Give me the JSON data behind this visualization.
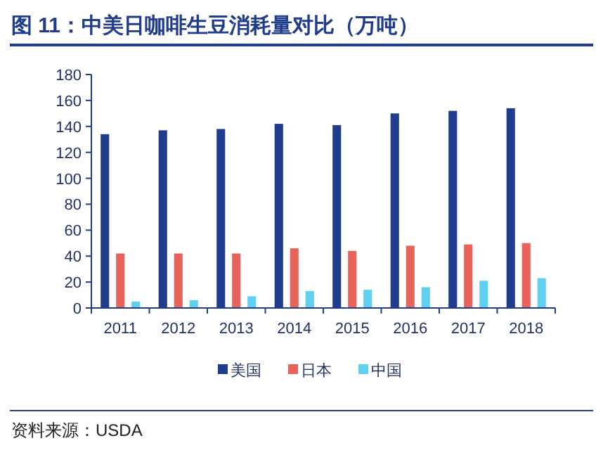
{
  "chart_data": {
    "type": "bar",
    "title": "图 11：中美日咖啡生豆消耗量对比（万吨）",
    "categories": [
      "2011",
      "2012",
      "2013",
      "2014",
      "2015",
      "2016",
      "2017",
      "2018"
    ],
    "series": [
      {
        "name": "美国",
        "color": "#1f3d8c",
        "values": [
          134,
          137,
          138,
          142,
          141,
          150,
          152,
          154
        ]
      },
      {
        "name": "日本",
        "color": "#e8645a",
        "values": [
          42,
          42,
          42,
          46,
          44,
          48,
          49,
          50
        ]
      },
      {
        "name": "中国",
        "color": "#5fd0f0",
        "values": [
          5,
          6,
          9,
          13,
          14,
          16,
          21,
          23
        ]
      }
    ],
    "ylim": [
      0,
      180
    ],
    "yticks": [
      0,
      20,
      40,
      60,
      80,
      100,
      120,
      140,
      160,
      180
    ],
    "grid": false,
    "legend": "bottom",
    "annotations": [
      "资料来源：USDA"
    ]
  }
}
